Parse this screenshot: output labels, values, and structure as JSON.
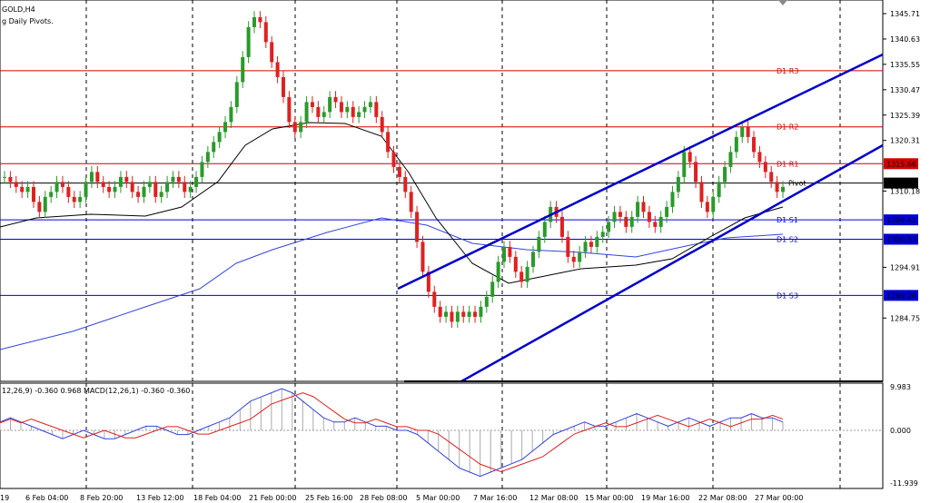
{
  "header": {
    "symbol": "GOLD,H4",
    "indicator": "g Daily Pivots."
  },
  "macd_label": "12,26,9) -0.360 0.968 MACD(12,26,1) -0.360 -0.360",
  "price_ticks": [
    "1345.71",
    "1340.63",
    "1335.55",
    "1330.47",
    "1325.39",
    "1320.31",
    "1315.66",
    "1311.78",
    "1310.18",
    "1304.41",
    "1300.53",
    "1294.91",
    "1289.28",
    "1284.75"
  ],
  "macd_ticks": [
    "9.983",
    "0.000",
    "-11.939"
  ],
  "x_ticks": [
    "19",
    "6 Feb 04:00",
    "8 Feb 20:00",
    "13 Feb 12:00",
    "18 Feb 04:00",
    "21 Feb 00:00",
    "25 Feb 16:00",
    "28 Feb 08:00",
    "5 Mar 00:00",
    "7 Mar 16:00",
    "12 Mar 08:00",
    "15 Mar 00:00",
    "19 Mar 16:00",
    "22 Mar 08:00",
    "27 Mar 00:00"
  ],
  "pivot_levels": [
    {
      "name": "D1 R3",
      "value": "1334.28",
      "color": "#d40000"
    },
    {
      "name": "D1 R2",
      "value": "1323.03",
      "color": "#d40000"
    },
    {
      "name": "D1 R1",
      "value": "1315.66",
      "color": "#d40000"
    },
    {
      "name": "Pivot",
      "value": "1311.78",
      "color": "#000000"
    },
    {
      "name": "D1 S1",
      "value": "1304.41",
      "color": "#0000d4"
    },
    {
      "name": "D1 S2",
      "value": "1300.53",
      "color": "#0000d4"
    },
    {
      "name": "D1 S3",
      "value": "1289.28",
      "color": "#0000d4"
    }
  ],
  "colors": {
    "bull": "#2a9a2a",
    "bear": "#e02020",
    "channel": "#0000cc",
    "ma200": "#3344dd",
    "ma50": "#000000",
    "grid": "#000000"
  }
}
